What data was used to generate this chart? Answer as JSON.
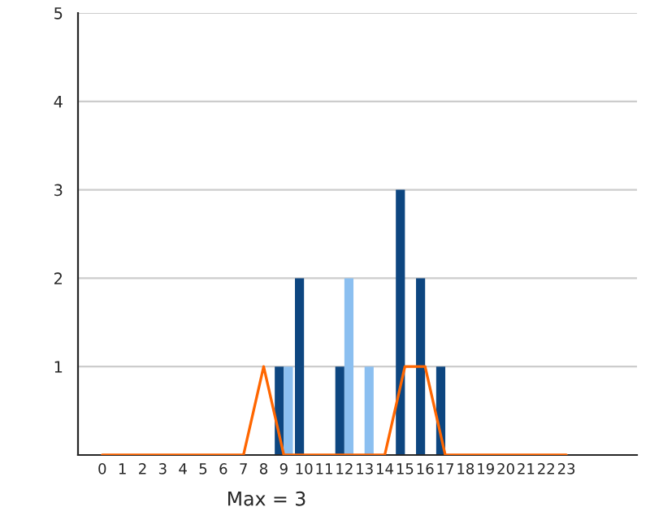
{
  "chart_data": {
    "type": "bar",
    "categories": [
      "0",
      "1",
      "2",
      "3",
      "4",
      "5",
      "6",
      "7",
      "8",
      "9",
      "10",
      "11",
      "12",
      "13",
      "14",
      "15",
      "16",
      "17",
      "18",
      "19",
      "20",
      "21",
      "22",
      "23"
    ],
    "series": [
      {
        "color": "#0d4680",
        "values": [
          0,
          0,
          0,
          0,
          0,
          0,
          0,
          0,
          0,
          1,
          2,
          0,
          1,
          0,
          0,
          3,
          2,
          1,
          0,
          0,
          0,
          0,
          0,
          0
        ]
      },
      {
        "color": "#8bbff0",
        "values": [
          0,
          0,
          0,
          0,
          0,
          0,
          0,
          0,
          0,
          1,
          0,
          0,
          2,
          1,
          0,
          0,
          0,
          0,
          0,
          0,
          0,
          0,
          0,
          0
        ]
      },
      {
        "type": "line",
        "color": "#ff6600",
        "values": [
          0,
          0,
          0,
          0,
          0,
          0,
          0,
          0,
          1,
          0,
          0,
          0,
          0,
          0,
          0,
          1,
          1,
          0,
          0,
          0,
          0,
          0,
          0,
          0
        ]
      }
    ],
    "ylim": [
      0,
      5
    ],
    "yticks": [
      {
        "value": 0,
        "label": null
      },
      1,
      2,
      3,
      4,
      5
    ],
    "grid": "y",
    "legend": false,
    "marker": "none",
    "line_style": "solid",
    "annotations": [
      "Max = 3"
    ]
  }
}
